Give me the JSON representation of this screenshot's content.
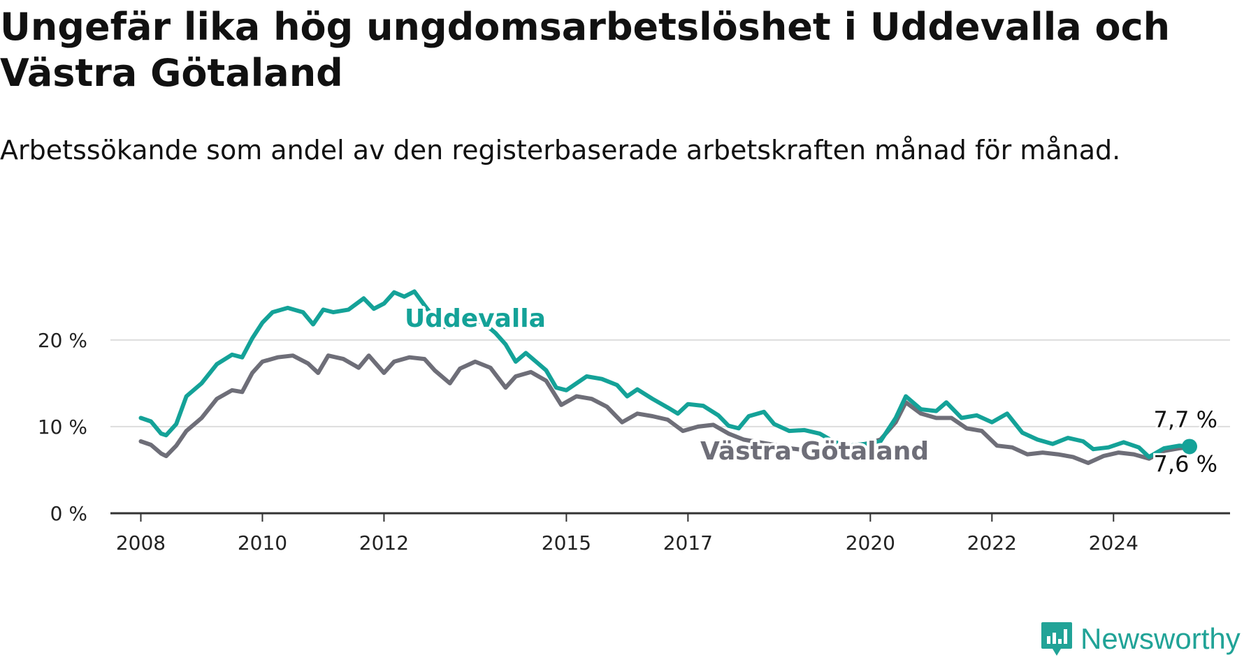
{
  "header": {
    "title": "Ungefär lika hög ungdomsarbetslöshet i Uddevalla och Västra Götaland",
    "subtitle": "Arbetssökande som andel av den registerbaserade arbetskraften månad för månad."
  },
  "brand": {
    "name": "Newsworthy",
    "icon": "newsworthy-logo-icon",
    "color": "#21a397"
  },
  "colors": {
    "uddevalla": "#14a298",
    "vastra_gotaland": "#6e6e78",
    "grid": "#dddddd",
    "axis": "#333333"
  },
  "chart_data": {
    "type": "line",
    "title": "Ungefär lika hög ungdomsarbetslöshet i Uddevalla och Västra Götaland",
    "subtitle": "Arbetssökande som andel av den registerbaserade arbetskraften månad för månad.",
    "xlabel": "",
    "ylabel": "",
    "ylim": [
      0,
      27
    ],
    "xlim": [
      "2007-07",
      "2025-12"
    ],
    "grid": true,
    "y_ticks": [
      {
        "value": 0,
        "label": "0 %"
      },
      {
        "value": 10,
        "label": "10 %"
      },
      {
        "value": 20,
        "label": "20 %"
      }
    ],
    "x_ticks": [
      {
        "value": "2008-01",
        "label": "2008"
      },
      {
        "value": "2010-01",
        "label": "2010"
      },
      {
        "value": "2012-01",
        "label": "2012"
      },
      {
        "value": "2015-01",
        "label": "2015"
      },
      {
        "value": "2017-01",
        "label": "2017"
      },
      {
        "value": "2020-01",
        "label": "2020"
      },
      {
        "value": "2022-01",
        "label": "2022"
      },
      {
        "value": "2024-01",
        "label": "2024"
      }
    ],
    "series": [
      {
        "name": "Uddevalla",
        "color": "#14a298",
        "end_label": "7,7 %",
        "points": [
          [
            "2008-01",
            11.0
          ],
          [
            "2008-03",
            10.6
          ],
          [
            "2008-05",
            9.2
          ],
          [
            "2008-06",
            9.0
          ],
          [
            "2008-08",
            10.3
          ],
          [
            "2008-10",
            13.5
          ],
          [
            "2009-01",
            15.0
          ],
          [
            "2009-04",
            17.2
          ],
          [
            "2009-07",
            18.3
          ],
          [
            "2009-09",
            18.0
          ],
          [
            "2009-11",
            20.2
          ],
          [
            "2010-01",
            22.0
          ],
          [
            "2010-03",
            23.2
          ],
          [
            "2010-06",
            23.7
          ],
          [
            "2010-09",
            23.2
          ],
          [
            "2010-11",
            21.8
          ],
          [
            "2011-01",
            23.5
          ],
          [
            "2011-03",
            23.2
          ],
          [
            "2011-06",
            23.5
          ],
          [
            "2011-09",
            24.8
          ],
          [
            "2011-11",
            23.6
          ],
          [
            "2012-01",
            24.2
          ],
          [
            "2012-03",
            25.5
          ],
          [
            "2012-05",
            25.0
          ],
          [
            "2012-07",
            25.6
          ],
          [
            "2012-09",
            24.0
          ],
          [
            "2012-11",
            22.5
          ],
          [
            "2013-01",
            21.5
          ],
          [
            "2013-03",
            22.4
          ],
          [
            "2013-06",
            22.6
          ],
          [
            "2013-09",
            21.8
          ],
          [
            "2013-11",
            20.8
          ],
          [
            "2014-01",
            19.5
          ],
          [
            "2014-03",
            17.5
          ],
          [
            "2014-05",
            18.5
          ],
          [
            "2014-07",
            17.5
          ],
          [
            "2014-09",
            16.5
          ],
          [
            "2014-11",
            14.5
          ],
          [
            "2015-01",
            14.2
          ],
          [
            "2015-03",
            15.0
          ],
          [
            "2015-05",
            15.8
          ],
          [
            "2015-08",
            15.5
          ],
          [
            "2015-11",
            14.8
          ],
          [
            "2016-01",
            13.5
          ],
          [
            "2016-03",
            14.3
          ],
          [
            "2016-06",
            13.2
          ],
          [
            "2016-09",
            12.2
          ],
          [
            "2016-11",
            11.5
          ],
          [
            "2017-01",
            12.6
          ],
          [
            "2017-04",
            12.4
          ],
          [
            "2017-07",
            11.3
          ],
          [
            "2017-09",
            10.1
          ],
          [
            "2017-11",
            9.8
          ],
          [
            "2018-01",
            11.2
          ],
          [
            "2018-04",
            11.7
          ],
          [
            "2018-06",
            10.3
          ],
          [
            "2018-09",
            9.5
          ],
          [
            "2018-12",
            9.6
          ],
          [
            "2019-03",
            9.2
          ],
          [
            "2019-06",
            8.2
          ],
          [
            "2019-09",
            7.8
          ],
          [
            "2019-12",
            8.0
          ],
          [
            "2020-03",
            8.3
          ],
          [
            "2020-06",
            11.0
          ],
          [
            "2020-08",
            13.5
          ],
          [
            "2020-11",
            12.0
          ],
          [
            "2021-02",
            11.8
          ],
          [
            "2021-04",
            12.8
          ],
          [
            "2021-07",
            11.0
          ],
          [
            "2021-10",
            11.3
          ],
          [
            "2022-01",
            10.5
          ],
          [
            "2022-04",
            11.5
          ],
          [
            "2022-07",
            9.3
          ],
          [
            "2022-10",
            8.5
          ],
          [
            "2023-01",
            8.0
          ],
          [
            "2023-04",
            8.7
          ],
          [
            "2023-07",
            8.3
          ],
          [
            "2023-09",
            7.4
          ],
          [
            "2023-12",
            7.6
          ],
          [
            "2024-03",
            8.2
          ],
          [
            "2024-06",
            7.6
          ],
          [
            "2024-08",
            6.5
          ],
          [
            "2024-11",
            7.5
          ],
          [
            "2025-02",
            7.8
          ],
          [
            "2025-04",
            7.7
          ]
        ]
      },
      {
        "name": "Västra Götaland",
        "color": "#6e6e78",
        "end_label": "7,6 %",
        "points": [
          [
            "2008-01",
            8.3
          ],
          [
            "2008-03",
            7.9
          ],
          [
            "2008-05",
            6.9
          ],
          [
            "2008-06",
            6.6
          ],
          [
            "2008-08",
            7.8
          ],
          [
            "2008-10",
            9.5
          ],
          [
            "2009-01",
            11.0
          ],
          [
            "2009-04",
            13.2
          ],
          [
            "2009-07",
            14.2
          ],
          [
            "2009-09",
            14.0
          ],
          [
            "2009-11",
            16.2
          ],
          [
            "2010-01",
            17.5
          ],
          [
            "2010-04",
            18.0
          ],
          [
            "2010-07",
            18.2
          ],
          [
            "2010-10",
            17.3
          ],
          [
            "2010-12",
            16.2
          ],
          [
            "2011-02",
            18.2
          ],
          [
            "2011-05",
            17.8
          ],
          [
            "2011-08",
            16.8
          ],
          [
            "2011-10",
            18.2
          ],
          [
            "2012-01",
            16.2
          ],
          [
            "2012-03",
            17.5
          ],
          [
            "2012-06",
            18.0
          ],
          [
            "2012-09",
            17.8
          ],
          [
            "2012-11",
            16.5
          ],
          [
            "2013-02",
            15.0
          ],
          [
            "2013-04",
            16.7
          ],
          [
            "2013-07",
            17.5
          ],
          [
            "2013-10",
            16.8
          ],
          [
            "2014-01",
            14.5
          ],
          [
            "2014-03",
            15.8
          ],
          [
            "2014-06",
            16.3
          ],
          [
            "2014-09",
            15.3
          ],
          [
            "2014-12",
            12.5
          ],
          [
            "2015-03",
            13.5
          ],
          [
            "2015-06",
            13.2
          ],
          [
            "2015-09",
            12.3
          ],
          [
            "2015-12",
            10.5
          ],
          [
            "2016-03",
            11.5
          ],
          [
            "2016-06",
            11.2
          ],
          [
            "2016-09",
            10.8
          ],
          [
            "2016-12",
            9.5
          ],
          [
            "2017-03",
            10.0
          ],
          [
            "2017-06",
            10.2
          ],
          [
            "2017-09",
            9.2
          ],
          [
            "2017-12",
            8.5
          ],
          [
            "2018-03",
            8.2
          ],
          [
            "2018-06",
            7.9
          ],
          [
            "2018-09",
            7.5
          ],
          [
            "2018-12",
            7.3
          ],
          [
            "2019-03",
            7.2
          ],
          [
            "2019-06",
            7.5
          ],
          [
            "2019-09",
            7.8
          ],
          [
            "2019-12",
            8.0
          ],
          [
            "2020-03",
            8.5
          ],
          [
            "2020-06",
            10.5
          ],
          [
            "2020-08",
            12.8
          ],
          [
            "2020-11",
            11.5
          ],
          [
            "2021-02",
            11.0
          ],
          [
            "2021-05",
            11.0
          ],
          [
            "2021-08",
            9.8
          ],
          [
            "2021-11",
            9.5
          ],
          [
            "2022-02",
            7.8
          ],
          [
            "2022-05",
            7.6
          ],
          [
            "2022-08",
            6.8
          ],
          [
            "2022-11",
            7.0
          ],
          [
            "2023-02",
            6.8
          ],
          [
            "2023-05",
            6.5
          ],
          [
            "2023-08",
            5.8
          ],
          [
            "2023-11",
            6.6
          ],
          [
            "2024-02",
            7.0
          ],
          [
            "2024-05",
            6.8
          ],
          [
            "2024-08",
            6.3
          ],
          [
            "2024-11",
            7.2
          ],
          [
            "2025-02",
            7.5
          ],
          [
            "2025-04",
            7.6
          ]
        ]
      }
    ]
  }
}
